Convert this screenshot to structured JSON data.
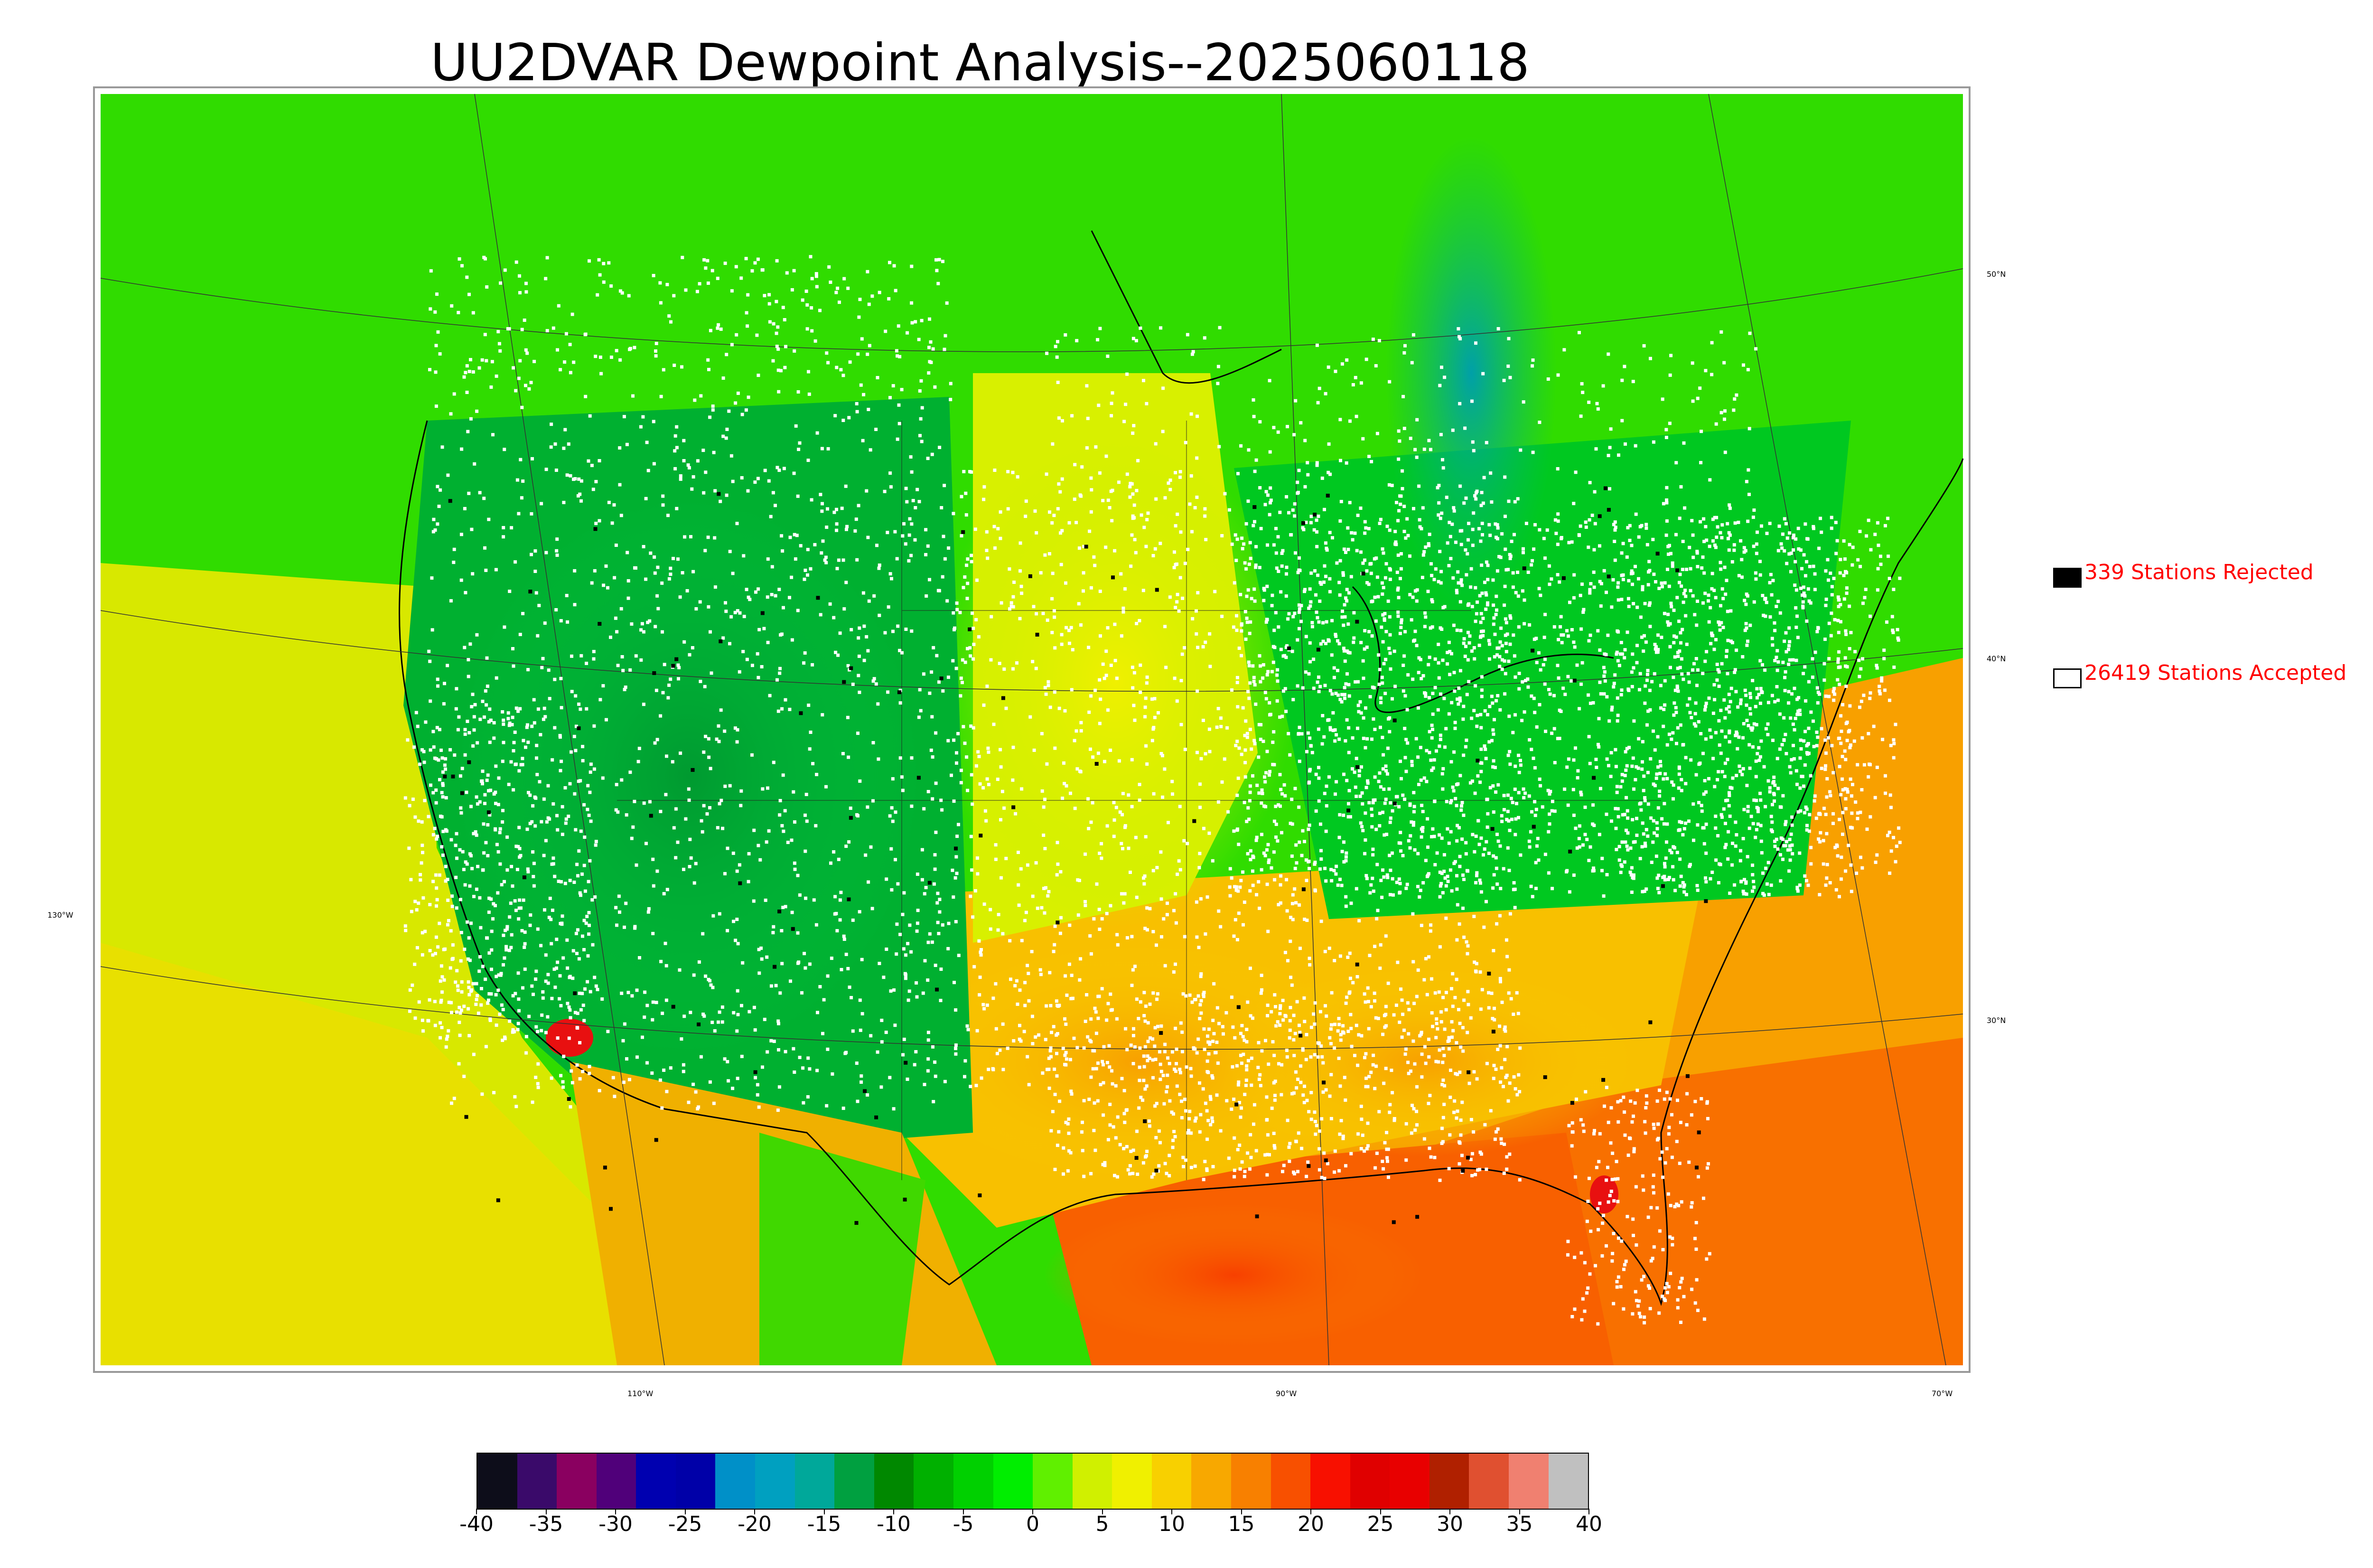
{
  "title": "UU2DVAR Dewpoint Analysis--2025060118",
  "legend": {
    "rejected": {
      "label": "339 Stations Rejected",
      "swatch_color": "#000000"
    },
    "accepted": {
      "label": "26419 Stations Accepted",
      "swatch_color": "#ffffff"
    }
  },
  "graticule": {
    "longitude_labels": [
      "110°W",
      "90°W",
      "70°W"
    ],
    "latitude_labels_left": [
      "130°W"
    ],
    "latitude_labels_right": [
      "50°N",
      "40°N",
      "30°N"
    ]
  },
  "colorbar": {
    "ticks": [
      "-40",
      "-35",
      "-30",
      "-25",
      "-20",
      "-15",
      "-10",
      "-5",
      "0",
      "5",
      "10",
      "15",
      "20",
      "25",
      "30",
      "35",
      "40"
    ],
    "colors": [
      "#0d0d1a",
      "#3a0a6a",
      "#8a0060",
      "#50007a",
      "#0000b0",
      "#0000a8",
      "#0090c8",
      "#00a0c0",
      "#00a89a",
      "#00a040",
      "#008800",
      "#00b000",
      "#00d000",
      "#00ee00",
      "#60f000",
      "#d0f000",
      "#f0f000",
      "#f8d000",
      "#f8a800",
      "#f88000",
      "#f85000",
      "#f81000",
      "#e00000",
      "#e80000",
      "#b02000",
      "#e05030",
      "#f08070",
      "#c0c0c0"
    ]
  },
  "map_colors": {
    "ocean_pacific": "#c8e800",
    "ocean_gulf": "#f86000",
    "ocean_atlantic": "#f89000",
    "canada": "#00d000",
    "west_dry": "#00a030",
    "plains": "#e8e800",
    "south": "#f8b000",
    "gulf_coast": "#f87000",
    "east": "#00c800",
    "hudson": "#00a8a0",
    "mexico": "#f0a000",
    "baja_red": "#f02000"
  }
}
